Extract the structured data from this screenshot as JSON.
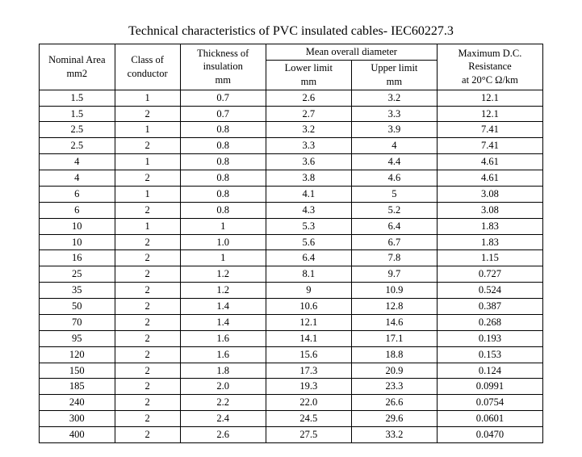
{
  "title": "Technical characteristics of PVC insulated cables- IEC60227.3",
  "headers": {
    "area_l1": "Nominal Area",
    "area_l2": "mm2",
    "class_l1": "Class of",
    "class_l2": "conductor",
    "thk_l1": "Thickness of",
    "thk_l2": "insulation",
    "thk_l3": "mm",
    "mean": "Mean overall diameter",
    "ll_l1": "Lower limit",
    "ll_l2": "mm",
    "ul_l1": "Upper limit",
    "ul_l2": "mm",
    "res_l1": "Maximum D.C.",
    "res_l2": "Resistance",
    "res_l3": "at 20°C Ω/km"
  },
  "rows": [
    {
      "area": "1.5",
      "cls": "1",
      "thk": "0.7",
      "ll": "2.6",
      "ul": "3.2",
      "res": "12.1"
    },
    {
      "area": "1.5",
      "cls": "2",
      "thk": "0.7",
      "ll": "2.7",
      "ul": "3.3",
      "res": "12.1"
    },
    {
      "area": "2.5",
      "cls": "1",
      "thk": "0.8",
      "ll": "3.2",
      "ul": "3.9",
      "res": "7.41"
    },
    {
      "area": "2.5",
      "cls": "2",
      "thk": "0.8",
      "ll": "3.3",
      "ul": "4",
      "res": "7.41"
    },
    {
      "area": "4",
      "cls": "1",
      "thk": "0.8",
      "ll": "3.6",
      "ul": "4.4",
      "res": "4.61"
    },
    {
      "area": "4",
      "cls": "2",
      "thk": "0.8",
      "ll": "3.8",
      "ul": "4.6",
      "res": "4.61"
    },
    {
      "area": "6",
      "cls": "1",
      "thk": "0.8",
      "ll": "4.1",
      "ul": "5",
      "res": "3.08"
    },
    {
      "area": "6",
      "cls": "2",
      "thk": "0.8",
      "ll": "4.3",
      "ul": "5.2",
      "res": "3.08"
    },
    {
      "area": "10",
      "cls": "1",
      "thk": "1",
      "ll": "5.3",
      "ul": "6.4",
      "res": "1.83"
    },
    {
      "area": "10",
      "cls": "2",
      "thk": "1.0",
      "ll": "5.6",
      "ul": "6.7",
      "res": "1.83"
    },
    {
      "area": "16",
      "cls": "2",
      "thk": "1",
      "ll": "6.4",
      "ul": "7.8",
      "res": "1.15"
    },
    {
      "area": "25",
      "cls": "2",
      "thk": "1.2",
      "ll": "8.1",
      "ul": "9.7",
      "res": "0.727"
    },
    {
      "area": "35",
      "cls": "2",
      "thk": "1.2",
      "ll": "9",
      "ul": "10.9",
      "res": "0.524"
    },
    {
      "area": "50",
      "cls": "2",
      "thk": "1.4",
      "ll": "10.6",
      "ul": "12.8",
      "res": "0.387"
    },
    {
      "area": "70",
      "cls": "2",
      "thk": "1.4",
      "ll": "12.1",
      "ul": "14.6",
      "res": "0.268"
    },
    {
      "area": "95",
      "cls": "2",
      "thk": "1.6",
      "ll": "14.1",
      "ul": "17.1",
      "res": "0.193"
    },
    {
      "area": "120",
      "cls": "2",
      "thk": "1.6",
      "ll": "15.6",
      "ul": "18.8",
      "res": "0.153"
    },
    {
      "area": "150",
      "cls": "2",
      "thk": "1.8",
      "ll": "17.3",
      "ul": "20.9",
      "res": "0.124"
    },
    {
      "area": "185",
      "cls": "2",
      "thk": "2.0",
      "ll": "19.3",
      "ul": "23.3",
      "res": "0.0991"
    },
    {
      "area": "240",
      "cls": "2",
      "thk": "2.2",
      "ll": "22.0",
      "ul": "26.6",
      "res": "0.0754"
    },
    {
      "area": "300",
      "cls": "2",
      "thk": "2.4",
      "ll": "24.5",
      "ul": "29.6",
      "res": "0.0601"
    },
    {
      "area": "400",
      "cls": "2",
      "thk": "2.6",
      "ll": "27.5",
      "ul": "33.2",
      "res": "0.0470"
    }
  ],
  "style": {
    "font_family": "Times New Roman",
    "title_fontsize_pt": 16,
    "body_fontsize_pt": 12.5,
    "text_color": "#000000",
    "border_color": "#000000",
    "background_color": "#ffffff",
    "column_widths_pct": [
      15,
      13,
      17,
      17,
      17,
      21
    ]
  }
}
